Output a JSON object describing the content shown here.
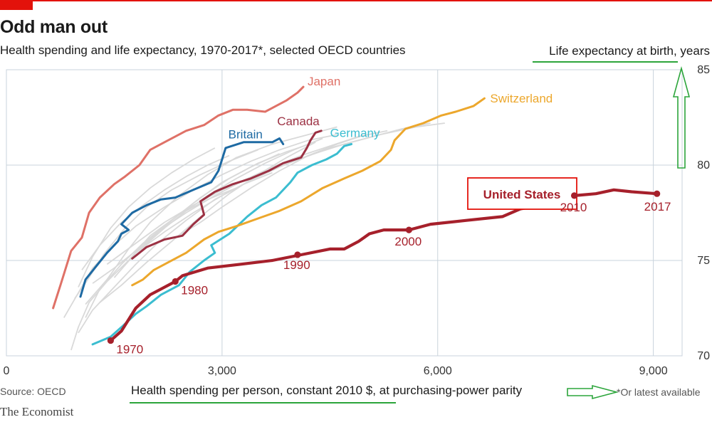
{
  "header": {
    "title": "Odd man out",
    "subtitle": "Health spending and life expectancy, 1970-2017*, selected OECD countries"
  },
  "footer": {
    "source": "Source: OECD",
    "footnote": "*Or latest available",
    "brand": "The Economist"
  },
  "colors": {
    "Japan": "#df7167",
    "Canada": "#9c3143",
    "Britain": "#1e6aa3",
    "Germany": "#3bbdd0",
    "Switzerland": "#eca72c",
    "United States": "#a6202b",
    "others": "#d9d9d9",
    "annotation": "#2ca53b"
  },
  "chart_data": {
    "type": "line",
    "xlabel": "Health spending per person, constant 2010 $, at purchasing-power parity",
    "ylabel": "Life expectancy at birth, years",
    "xlim": [
      0,
      9400
    ],
    "ylim": [
      70,
      85
    ],
    "xticks": [
      "0",
      "3,000",
      "6,000",
      "9,000"
    ],
    "xtick_values": [
      0,
      3000,
      6000,
      9000
    ],
    "yticks": [
      "85",
      "80",
      "75",
      "70"
    ],
    "ytick_values": [
      85,
      80,
      75,
      70
    ],
    "grid": true,
    "highlight_box_label": "United States",
    "series": [
      {
        "name": "Japan",
        "x": [
          650,
          760,
          900,
          1050,
          1150,
          1300,
          1500,
          1650,
          1850,
          2000,
          2200,
          2500,
          2750,
          2950,
          3150,
          3350,
          3600,
          3900,
          4050,
          4130
        ],
        "y": [
          72.5,
          73.8,
          75.5,
          76.2,
          77.5,
          78.3,
          79.0,
          79.4,
          80.0,
          80.8,
          81.2,
          81.8,
          82.1,
          82.6,
          82.9,
          82.9,
          82.8,
          83.4,
          83.8,
          84.1
        ]
      },
      {
        "name": "Canada",
        "x": [
          1750,
          1950,
          2200,
          2450,
          2600,
          2750,
          2700,
          2900,
          3150,
          3400,
          3650,
          3850,
          4100,
          4180,
          4230,
          4300,
          4380
        ],
        "y": [
          75.1,
          75.7,
          76.1,
          76.3,
          76.9,
          77.4,
          78.1,
          78.6,
          79.0,
          79.3,
          79.7,
          80.1,
          80.4,
          80.9,
          81.3,
          81.7,
          81.8
        ]
      },
      {
        "name": "Britain",
        "x": [
          1030,
          1100,
          1250,
          1400,
          1550,
          1600,
          1700,
          1600,
          1750,
          1950,
          2150,
          2350,
          2600,
          2850,
          2950,
          3000,
          3050,
          3300,
          3500,
          3700,
          3800,
          3850
        ],
        "y": [
          73.1,
          74.0,
          74.7,
          75.4,
          76.0,
          76.4,
          76.6,
          76.9,
          77.5,
          77.9,
          78.2,
          78.3,
          78.7,
          79.1,
          79.7,
          80.3,
          80.9,
          81.2,
          81.2,
          81.2,
          81.4,
          81.1
        ]
      },
      {
        "name": "Germany",
        "x": [
          1200,
          1450,
          1600,
          1800,
          1950,
          2150,
          2400,
          2550,
          2750,
          2900,
          2850,
          3100,
          3350,
          3550,
          3750,
          3950,
          4050,
          4250,
          4450,
          4600,
          4700,
          4800
        ],
        "y": [
          70.6,
          71.0,
          71.5,
          72.2,
          72.6,
          73.2,
          73.7,
          74.4,
          75.0,
          75.4,
          75.8,
          76.4,
          77.3,
          77.9,
          78.3,
          79.1,
          79.6,
          80.0,
          80.3,
          80.6,
          81.0,
          81.1
        ]
      },
      {
        "name": "Switzerland",
        "x": [
          1750,
          1900,
          2050,
          2250,
          2500,
          2750,
          2950,
          3200,
          3500,
          3800,
          4100,
          4400,
          4700,
          4950,
          5200,
          5350,
          5400,
          5550,
          5800,
          6050,
          6250,
          6500,
          6650
        ],
        "y": [
          73.7,
          74.0,
          74.5,
          74.9,
          75.4,
          76.1,
          76.5,
          76.8,
          77.2,
          77.6,
          78.1,
          78.8,
          79.3,
          79.7,
          80.2,
          80.8,
          81.3,
          81.9,
          82.2,
          82.6,
          82.8,
          83.1,
          83.5
        ]
      },
      {
        "name": "United States",
        "x": [
          1450,
          1600,
          1800,
          2000,
          2150,
          2350,
          2450,
          2800,
          3250,
          3700,
          4100,
          4500,
          4700,
          4900,
          5050,
          5250,
          5600,
          5900,
          6400,
          6900,
          7150,
          7450,
          7700,
          7900,
          8200,
          8450,
          8700,
          9050
        ],
        "y": [
          70.8,
          71.3,
          72.5,
          73.2,
          73.5,
          73.9,
          74.2,
          74.6,
          74.8,
          75.0,
          75.3,
          75.6,
          75.6,
          76.0,
          76.4,
          76.6,
          76.6,
          76.9,
          77.1,
          77.3,
          77.7,
          77.9,
          78.1,
          78.4,
          78.5,
          78.7,
          78.6,
          78.5
        ]
      },
      {
        "name": "other-1",
        "x": [
          900,
          1000,
          1150,
          1400,
          1700,
          2000,
          2400,
          2800,
          3200
        ],
        "y": [
          70.3,
          71.5,
          72.8,
          73.9,
          75.0,
          76.3,
          77.4,
          78.2,
          78.8
        ]
      },
      {
        "name": "other-2",
        "x": [
          1000,
          1200,
          1500,
          1800,
          2100,
          2500,
          2900,
          3300,
          3700
        ],
        "y": [
          71.2,
          72.4,
          73.6,
          74.8,
          75.9,
          77.1,
          78.2,
          79.0,
          79.6
        ]
      },
      {
        "name": "other-3",
        "x": [
          1100,
          1300,
          1600,
          1900,
          2300,
          2700,
          3100,
          3500,
          3900,
          4300
        ],
        "y": [
          72.0,
          73.5,
          74.8,
          75.9,
          77.1,
          78.3,
          79.3,
          80.1,
          80.7,
          81.2
        ]
      },
      {
        "name": "other-4",
        "x": [
          950,
          1150,
          1350,
          1650,
          1950,
          2300,
          2700,
          3100,
          3500
        ],
        "y": [
          73.0,
          74.1,
          75.3,
          76.7,
          77.8,
          78.7,
          79.5,
          80.2,
          80.8
        ]
      },
      {
        "name": "other-5",
        "x": [
          800,
          1000,
          1200,
          1500,
          1800,
          2200,
          2600,
          3000,
          3400,
          3800,
          4200,
          4600
        ],
        "y": [
          72.0,
          73.3,
          74.6,
          75.8,
          76.8,
          77.8,
          78.7,
          79.5,
          80.2,
          80.8,
          81.3,
          81.6
        ]
      },
      {
        "name": "other-6",
        "x": [
          1200,
          1500,
          1800,
          2100,
          2500,
          2900,
          3300,
          3700,
          4100,
          4500,
          4900,
          5300
        ],
        "y": [
          73.8,
          74.6,
          75.5,
          76.5,
          77.5,
          78.4,
          79.2,
          79.9,
          80.5,
          81.0,
          81.5,
          81.8
        ]
      },
      {
        "name": "other-7",
        "x": [
          1050,
          1300,
          1600,
          1900,
          2200,
          2500,
          2800,
          3100
        ],
        "y": [
          74.5,
          75.8,
          77.0,
          77.9,
          78.7,
          79.4,
          80.0,
          80.5
        ]
      },
      {
        "name": "other-8",
        "x": [
          1300,
          1600,
          1950,
          2300,
          2700,
          3100,
          3500,
          3900,
          4300
        ],
        "y": [
          72.8,
          73.7,
          74.9,
          76.0,
          77.3,
          78.5,
          79.5,
          80.4,
          81.2
        ]
      },
      {
        "name": "other-9",
        "x": [
          1400,
          1800,
          2200,
          2600,
          3000,
          3500,
          4000,
          4500,
          5000,
          5500,
          5900
        ],
        "y": [
          74.8,
          75.9,
          77.0,
          77.9,
          78.7,
          79.5,
          80.2,
          80.9,
          81.4,
          81.9,
          82.2
        ]
      },
      {
        "name": "other-10",
        "x": [
          1000,
          1200,
          1450,
          1700,
          2000,
          2300,
          2600,
          2900
        ],
        "y": [
          73.6,
          75.2,
          76.7,
          77.8,
          78.8,
          79.6,
          80.3,
          80.9
        ]
      },
      {
        "name": "other-11",
        "x": [
          1100,
          1400,
          1700,
          2000,
          2400,
          2800,
          3200,
          3700,
          4200,
          4600
        ],
        "y": [
          72.7,
          74.0,
          75.6,
          77.0,
          78.4,
          79.5,
          80.4,
          81.1,
          81.6,
          82.0
        ]
      },
      {
        "name": "other-12",
        "x": [
          1800,
          2200,
          2600,
          3000,
          3400,
          3800,
          4200,
          4700,
          5200,
          5700,
          6100
        ],
        "y": [
          75.4,
          76.5,
          77.5,
          78.4,
          79.2,
          79.9,
          80.5,
          81.1,
          81.6,
          82.0,
          82.2
        ]
      },
      {
        "name": "other-13",
        "x": [
          1500,
          1800,
          2200,
          2600,
          3000,
          3400,
          3800
        ],
        "y": [
          74.1,
          75.4,
          76.8,
          78.0,
          79.1,
          79.9,
          80.6
        ]
      },
      {
        "name": "other-14",
        "x": [
          2400,
          2700,
          3000,
          3400,
          3800,
          4200,
          4600,
          5000
        ],
        "y": [
          76.3,
          77.0,
          77.8,
          78.8,
          79.7,
          80.5,
          81.1,
          81.6
        ]
      },
      {
        "name": "other-15",
        "x": [
          1900,
          2200,
          2500,
          2800,
          3200,
          3600,
          4000,
          4400
        ],
        "y": [
          75.7,
          76.7,
          77.6,
          78.4,
          79.3,
          80.1,
          80.8,
          81.4
        ]
      }
    ],
    "series_labels": [
      "Japan",
      "Canada",
      "Britain",
      "Germany",
      "Switzerland"
    ],
    "annotations": [
      {
        "series": "United States",
        "label": "1970",
        "x": 1450,
        "y": 70.8
      },
      {
        "series": "United States",
        "label": "1980",
        "x": 2350,
        "y": 73.9
      },
      {
        "series": "United States",
        "label": "1990",
        "x": 4050,
        "y": 75.3
      },
      {
        "series": "United States",
        "label": "2000",
        "x": 5600,
        "y": 76.6
      },
      {
        "series": "United States",
        "label": "2010",
        "x": 7900,
        "y": 78.4
      },
      {
        "series": "United States",
        "label": "2017",
        "x": 9050,
        "y": 78.5
      }
    ]
  }
}
